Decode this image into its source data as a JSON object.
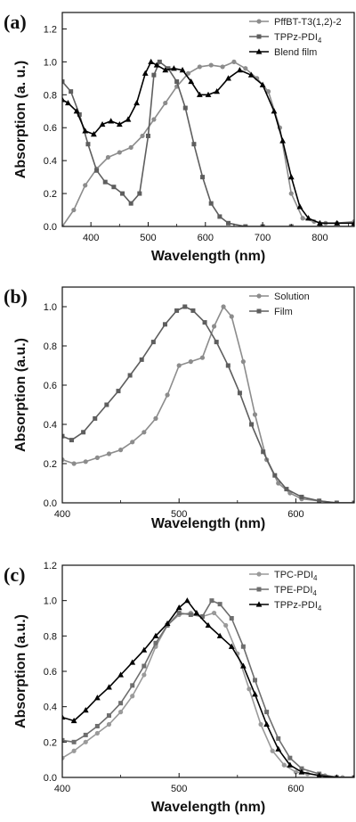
{
  "chart_data": [
    {
      "type": "line",
      "panel": "(a)",
      "xlabel": "Wavelength (nm)",
      "ylabel": "Absorption (a. u.)",
      "xlim": [
        350,
        860
      ],
      "ylim": [
        0.0,
        1.3
      ],
      "xticks": [
        400,
        500,
        600,
        700,
        800
      ],
      "yticks": [
        0.0,
        0.2,
        0.4,
        0.6,
        0.8,
        1.0,
        1.2
      ],
      "ytick_labels": [
        "0.0",
        "0.2",
        "0.4",
        "0.6",
        "0.8",
        "1.0",
        "1.2"
      ],
      "legend_position": "top-right",
      "series": [
        {
          "name": "PffBT-T3(1,2)-2",
          "color": "#8c8c8c",
          "marker": "circle",
          "x": [
            350,
            370,
            390,
            410,
            430,
            450,
            470,
            490,
            510,
            530,
            550,
            570,
            590,
            610,
            630,
            650,
            670,
            690,
            710,
            730,
            750,
            770,
            790,
            810,
            830,
            860
          ],
          "y": [
            0.0,
            0.1,
            0.25,
            0.35,
            0.42,
            0.45,
            0.48,
            0.55,
            0.65,
            0.75,
            0.85,
            0.93,
            0.97,
            0.98,
            0.97,
            1.0,
            0.96,
            0.9,
            0.82,
            0.6,
            0.2,
            0.05,
            0.03,
            0.02,
            0.02,
            0.03
          ]
        },
        {
          "name": "TPPz-PDI4",
          "color": "#5e5e5e",
          "marker": "square",
          "x": [
            350,
            365,
            380,
            395,
            410,
            425,
            440,
            455,
            470,
            485,
            500,
            510,
            520,
            535,
            550,
            565,
            580,
            595,
            610,
            625,
            640,
            670,
            700,
            750,
            800,
            860
          ],
          "y": [
            0.88,
            0.82,
            0.68,
            0.5,
            0.34,
            0.27,
            0.24,
            0.2,
            0.14,
            0.2,
            0.55,
            0.92,
            1.0,
            0.96,
            0.88,
            0.72,
            0.5,
            0.3,
            0.14,
            0.06,
            0.02,
            0.0,
            0.0,
            0.0,
            0.0,
            0.0
          ]
        },
        {
          "name": "Blend film",
          "color": "#000000",
          "marker": "triangle",
          "x": [
            350,
            360,
            375,
            390,
            405,
            420,
            435,
            450,
            465,
            480,
            495,
            505,
            515,
            530,
            545,
            560,
            575,
            590,
            605,
            620,
            640,
            660,
            680,
            700,
            720,
            735,
            750,
            765,
            780,
            800,
            830,
            860
          ],
          "y": [
            0.77,
            0.75,
            0.7,
            0.58,
            0.56,
            0.62,
            0.64,
            0.62,
            0.65,
            0.75,
            0.93,
            1.0,
            0.98,
            0.95,
            0.96,
            0.95,
            0.88,
            0.8,
            0.8,
            0.82,
            0.9,
            0.95,
            0.92,
            0.86,
            0.7,
            0.52,
            0.3,
            0.12,
            0.05,
            0.02,
            0.02,
            0.02
          ]
        }
      ]
    },
    {
      "type": "line",
      "panel": "(b)",
      "xlabel": "Wavelength (nm)",
      "ylabel": "Absorption (a.u.)",
      "xlim": [
        400,
        650
      ],
      "ylim": [
        0.0,
        1.1
      ],
      "xticks": [
        400,
        500,
        600
      ],
      "yticks": [
        0.0,
        0.2,
        0.4,
        0.6,
        0.8,
        1.0
      ],
      "ytick_labels": [
        "0.0",
        "0.2",
        "0.4",
        "0.6",
        "0.8",
        "1.0"
      ],
      "legend_position": "top-right",
      "series": [
        {
          "name": "Solution",
          "color": "#8c8c8c",
          "marker": "circle",
          "x": [
            400,
            410,
            420,
            430,
            440,
            450,
            460,
            470,
            480,
            490,
            500,
            510,
            520,
            530,
            538,
            545,
            555,
            565,
            575,
            585,
            595,
            605,
            620,
            635,
            650
          ],
          "y": [
            0.22,
            0.2,
            0.21,
            0.23,
            0.25,
            0.27,
            0.31,
            0.36,
            0.43,
            0.55,
            0.7,
            0.72,
            0.74,
            0.9,
            1.0,
            0.95,
            0.72,
            0.45,
            0.22,
            0.1,
            0.05,
            0.02,
            0.01,
            0.0,
            0.0
          ]
        },
        {
          "name": "Film",
          "color": "#5e5e5e",
          "marker": "square",
          "x": [
            400,
            408,
            418,
            428,
            438,
            448,
            458,
            468,
            478,
            488,
            498,
            505,
            512,
            522,
            532,
            542,
            552,
            562,
            572,
            582,
            592,
            605,
            620,
            635,
            650
          ],
          "y": [
            0.34,
            0.32,
            0.36,
            0.43,
            0.5,
            0.57,
            0.65,
            0.73,
            0.82,
            0.91,
            0.98,
            1.0,
            0.98,
            0.92,
            0.82,
            0.7,
            0.56,
            0.4,
            0.26,
            0.14,
            0.07,
            0.03,
            0.01,
            0.0,
            0.0
          ]
        }
      ]
    },
    {
      "type": "line",
      "panel": "(c)",
      "xlabel": "Wavelength (nm)",
      "ylabel": "Absorption (a.u.)",
      "xlim": [
        400,
        650
      ],
      "ylim": [
        0.0,
        1.2
      ],
      "xticks": [
        400,
        500,
        600
      ],
      "yticks": [
        0.0,
        0.2,
        0.4,
        0.6,
        0.8,
        1.0,
        1.2
      ],
      "ytick_labels": [
        "0.0",
        "0.2",
        "0.4",
        "0.6",
        "0.8",
        "1.0",
        "1.2"
      ],
      "legend_position": "top-right",
      "series": [
        {
          "name": "TPC-PDI4",
          "color": "#9a9a9a",
          "marker": "circle",
          "x": [
            400,
            410,
            420,
            430,
            440,
            450,
            460,
            470,
            480,
            490,
            500,
            510,
            520,
            530,
            540,
            550,
            560,
            570,
            580,
            590,
            600,
            610,
            625,
            640,
            650
          ],
          "y": [
            0.11,
            0.15,
            0.2,
            0.25,
            0.3,
            0.37,
            0.46,
            0.58,
            0.74,
            0.86,
            0.92,
            0.93,
            0.91,
            0.93,
            0.86,
            0.7,
            0.5,
            0.3,
            0.15,
            0.07,
            0.03,
            0.02,
            0.01,
            0.0,
            0.0
          ]
        },
        {
          "name": "TPE-PDI4",
          "color": "#6e6e6e",
          "marker": "square",
          "x": [
            400,
            410,
            420,
            430,
            440,
            450,
            460,
            470,
            480,
            490,
            500,
            510,
            520,
            528,
            535,
            545,
            555,
            565,
            575,
            585,
            595,
            605,
            620,
            635,
            650
          ],
          "y": [
            0.21,
            0.2,
            0.24,
            0.29,
            0.35,
            0.42,
            0.52,
            0.63,
            0.76,
            0.86,
            0.93,
            0.92,
            0.91,
            1.0,
            0.98,
            0.9,
            0.74,
            0.55,
            0.37,
            0.22,
            0.11,
            0.05,
            0.02,
            0.0,
            0.0
          ]
        },
        {
          "name": "TPPz-PDI4",
          "color": "#000000",
          "marker": "triangle",
          "x": [
            400,
            410,
            420,
            430,
            440,
            450,
            460,
            470,
            480,
            490,
            500,
            507,
            515,
            525,
            535,
            545,
            555,
            565,
            575,
            585,
            595,
            605,
            620,
            635,
            650
          ],
          "y": [
            0.34,
            0.32,
            0.38,
            0.45,
            0.51,
            0.58,
            0.65,
            0.72,
            0.8,
            0.87,
            0.96,
            1.0,
            0.93,
            0.86,
            0.8,
            0.74,
            0.63,
            0.47,
            0.3,
            0.16,
            0.07,
            0.03,
            0.01,
            0.0,
            0.0
          ]
        }
      ]
    }
  ]
}
